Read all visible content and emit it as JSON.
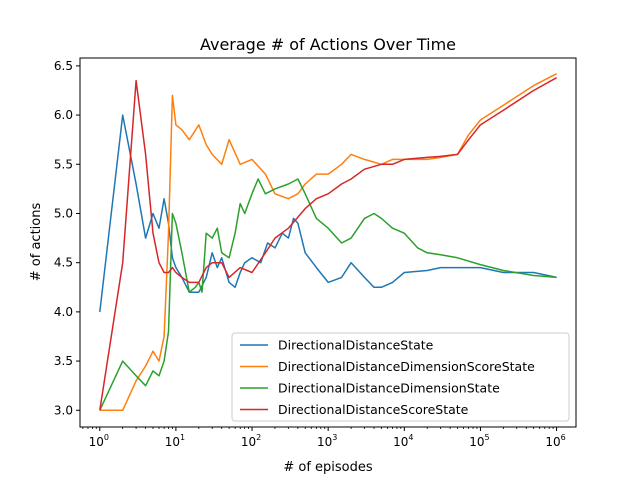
{
  "chart_data": {
    "type": "line",
    "title": "Average # of Actions Over Time",
    "xlabel": "# of episodes",
    "ylabel": "# of actions",
    "xscale": "log",
    "xlim": [
      0.55,
      1800000
    ],
    "ylim": [
      2.83,
      6.58
    ],
    "xticks": [
      {
        "value": 1,
        "base": "10",
        "exp": "0"
      },
      {
        "value": 10,
        "base": "10",
        "exp": "1"
      },
      {
        "value": 100,
        "base": "10",
        "exp": "2"
      },
      {
        "value": 1000,
        "base": "10",
        "exp": "3"
      },
      {
        "value": 10000,
        "base": "10",
        "exp": "4"
      },
      {
        "value": 100000,
        "base": "10",
        "exp": "5"
      },
      {
        "value": 1000000,
        "base": "10",
        "exp": "6"
      }
    ],
    "yticks": [
      {
        "value": 3.0,
        "label": "3.0"
      },
      {
        "value": 3.5,
        "label": "3.5"
      },
      {
        "value": 4.0,
        "label": "4.0"
      },
      {
        "value": 4.5,
        "label": "4.5"
      },
      {
        "value": 5.0,
        "label": "5.0"
      },
      {
        "value": 5.5,
        "label": "5.5"
      },
      {
        "value": 6.0,
        "label": "6.0"
      },
      {
        "value": 6.5,
        "label": "6.5"
      }
    ],
    "legend_position": "lower-right",
    "grid": false,
    "series": [
      {
        "name": "DirectionalDistanceState",
        "color": "#1f77b4",
        "points": [
          [
            1,
            4.0
          ],
          [
            2,
            6.0
          ],
          [
            3,
            5.3
          ],
          [
            4,
            4.75
          ],
          [
            5,
            5.0
          ],
          [
            6,
            4.85
          ],
          [
            7,
            5.15
          ],
          [
            8,
            4.9
          ],
          [
            9,
            4.55
          ],
          [
            10,
            4.45
          ],
          [
            12,
            4.35
          ],
          [
            15,
            4.2
          ],
          [
            20,
            4.2
          ],
          [
            25,
            4.35
          ],
          [
            30,
            4.6
          ],
          [
            35,
            4.45
          ],
          [
            40,
            4.55
          ],
          [
            50,
            4.3
          ],
          [
            60,
            4.25
          ],
          [
            70,
            4.4
          ],
          [
            80,
            4.5
          ],
          [
            100,
            4.55
          ],
          [
            130,
            4.5
          ],
          [
            160,
            4.7
          ],
          [
            200,
            4.65
          ],
          [
            250,
            4.8
          ],
          [
            300,
            4.75
          ],
          [
            350,
            4.95
          ],
          [
            400,
            4.9
          ],
          [
            500,
            4.6
          ],
          [
            700,
            4.45
          ],
          [
            1000,
            4.3
          ],
          [
            1500,
            4.35
          ],
          [
            2000,
            4.5
          ],
          [
            3000,
            4.35
          ],
          [
            4000,
            4.25
          ],
          [
            5000,
            4.25
          ],
          [
            7000,
            4.3
          ],
          [
            10000,
            4.4
          ],
          [
            20000,
            4.42
          ],
          [
            30000,
            4.45
          ],
          [
            50000,
            4.45
          ],
          [
            100000,
            4.45
          ],
          [
            200000,
            4.4
          ],
          [
            500000,
            4.4
          ],
          [
            1000000,
            4.35
          ]
        ]
      },
      {
        "name": "DirectionalDistanceDimensionScoreState",
        "color": "#ff7f0e",
        "points": [
          [
            1,
            3.0
          ],
          [
            2,
            3.0
          ],
          [
            3,
            3.3
          ],
          [
            4,
            3.45
          ],
          [
            5,
            3.6
          ],
          [
            6,
            3.5
          ],
          [
            7,
            3.75
          ],
          [
            8,
            4.8
          ],
          [
            9,
            6.2
          ],
          [
            10,
            5.9
          ],
          [
            12,
            5.85
          ],
          [
            15,
            5.75
          ],
          [
            20,
            5.9
          ],
          [
            25,
            5.7
          ],
          [
            30,
            5.6
          ],
          [
            40,
            5.5
          ],
          [
            50,
            5.75
          ],
          [
            70,
            5.5
          ],
          [
            100,
            5.55
          ],
          [
            150,
            5.4
          ],
          [
            200,
            5.2
          ],
          [
            300,
            5.15
          ],
          [
            400,
            5.2
          ],
          [
            500,
            5.3
          ],
          [
            700,
            5.4
          ],
          [
            1000,
            5.4
          ],
          [
            1500,
            5.5
          ],
          [
            2000,
            5.6
          ],
          [
            3000,
            5.55
          ],
          [
            5000,
            5.5
          ],
          [
            7000,
            5.55
          ],
          [
            10000,
            5.55
          ],
          [
            20000,
            5.55
          ],
          [
            30000,
            5.57
          ],
          [
            50000,
            5.6
          ],
          [
            70000,
            5.8
          ],
          [
            100000,
            5.95
          ],
          [
            200000,
            6.1
          ],
          [
            500000,
            6.3
          ],
          [
            1000000,
            6.42
          ]
        ]
      },
      {
        "name": "DirectionalDistanceDimensionState",
        "color": "#2ca02c",
        "points": [
          [
            1,
            3.0
          ],
          [
            2,
            3.5
          ],
          [
            3,
            3.35
          ],
          [
            4,
            3.25
          ],
          [
            5,
            3.4
          ],
          [
            6,
            3.35
          ],
          [
            7,
            3.5
          ],
          [
            8,
            3.8
          ],
          [
            9,
            5.0
          ],
          [
            10,
            4.9
          ],
          [
            12,
            4.6
          ],
          [
            15,
            4.2
          ],
          [
            18,
            4.25
          ],
          [
            20,
            4.3
          ],
          [
            22,
            4.2
          ],
          [
            25,
            4.8
          ],
          [
            30,
            4.75
          ],
          [
            35,
            4.85
          ],
          [
            40,
            4.6
          ],
          [
            50,
            4.55
          ],
          [
            60,
            4.8
          ],
          [
            70,
            5.1
          ],
          [
            80,
            5.0
          ],
          [
            100,
            5.2
          ],
          [
            120,
            5.35
          ],
          [
            150,
            5.2
          ],
          [
            200,
            5.25
          ],
          [
            300,
            5.3
          ],
          [
            400,
            5.35
          ],
          [
            500,
            5.2
          ],
          [
            700,
            4.95
          ],
          [
            1000,
            4.85
          ],
          [
            1500,
            4.7
          ],
          [
            2000,
            4.75
          ],
          [
            3000,
            4.95
          ],
          [
            4000,
            5.0
          ],
          [
            5000,
            4.95
          ],
          [
            7000,
            4.85
          ],
          [
            10000,
            4.8
          ],
          [
            15000,
            4.65
          ],
          [
            20000,
            4.6
          ],
          [
            30000,
            4.58
          ],
          [
            50000,
            4.55
          ],
          [
            100000,
            4.48
          ],
          [
            200000,
            4.42
          ],
          [
            500000,
            4.37
          ],
          [
            1000000,
            4.35
          ]
        ]
      },
      {
        "name": "DirectionalDistanceScoreState",
        "color": "#d62728",
        "points": [
          [
            1,
            3.0
          ],
          [
            2,
            4.5
          ],
          [
            3,
            6.35
          ],
          [
            4,
            5.6
          ],
          [
            5,
            4.8
          ],
          [
            6,
            4.5
          ],
          [
            7,
            4.4
          ],
          [
            8,
            4.4
          ],
          [
            9,
            4.45
          ],
          [
            10,
            4.4
          ],
          [
            12,
            4.35
          ],
          [
            15,
            4.3
          ],
          [
            20,
            4.3
          ],
          [
            25,
            4.45
          ],
          [
            30,
            4.5
          ],
          [
            40,
            4.5
          ],
          [
            50,
            4.35
          ],
          [
            70,
            4.45
          ],
          [
            100,
            4.4
          ],
          [
            150,
            4.6
          ],
          [
            200,
            4.75
          ],
          [
            300,
            4.85
          ],
          [
            500,
            5.05
          ],
          [
            700,
            5.15
          ],
          [
            1000,
            5.2
          ],
          [
            1500,
            5.3
          ],
          [
            2000,
            5.35
          ],
          [
            3000,
            5.45
          ],
          [
            5000,
            5.5
          ],
          [
            7000,
            5.5
          ],
          [
            10000,
            5.55
          ],
          [
            20000,
            5.57
          ],
          [
            30000,
            5.58
          ],
          [
            50000,
            5.6
          ],
          [
            70000,
            5.75
          ],
          [
            100000,
            5.9
          ],
          [
            200000,
            6.05
          ],
          [
            500000,
            6.25
          ],
          [
            1000000,
            6.38
          ]
        ]
      }
    ]
  }
}
